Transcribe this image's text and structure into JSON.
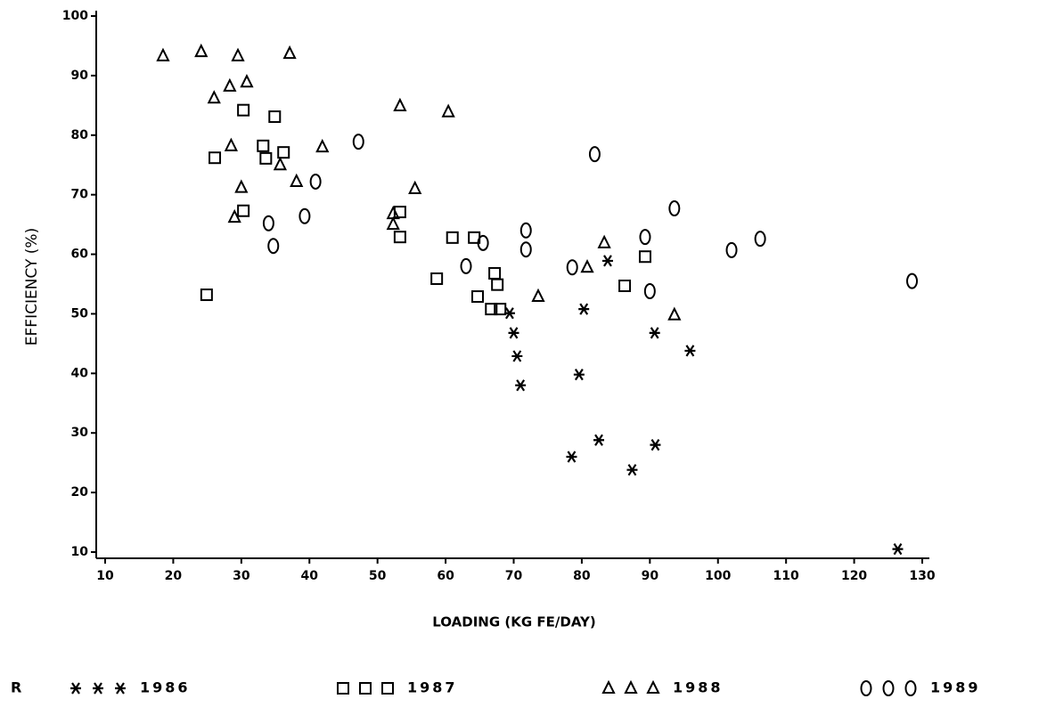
{
  "chart_data": {
    "type": "scatter",
    "x_label": "LOADING (KG FE/DAY)",
    "y_label": "EFFICIENCY (%)",
    "legend_title": "R",
    "xlim": [
      10,
      130
    ],
    "ylim": [
      10,
      100
    ],
    "xticks": [
      10,
      20,
      30,
      40,
      50,
      60,
      70,
      80,
      90,
      100,
      110,
      120,
      130
    ],
    "yticks": [
      10,
      20,
      30,
      40,
      50,
      60,
      70,
      80,
      90,
      100
    ],
    "grid": false,
    "legend_position": "bottom",
    "series": [
      {
        "name": "1986",
        "color": "#000000",
        "marker": "asterisk",
        "x": [
          69.4,
          70,
          70.5,
          71,
          80.3,
          83.8,
          79.6,
          78.5,
          82.5,
          87.4,
          90.8,
          90.7,
          95.9,
          126.4
        ],
        "y": [
          50.1,
          46.8,
          42.9,
          38,
          50.8,
          58.9,
          39.8,
          26,
          28.8,
          23.8,
          28,
          46.8,
          43.8,
          10.5
        ]
      },
      {
        "name": "1987",
        "color": "#000000",
        "marker": "square",
        "x": [
          24.9,
          26.1,
          30.3,
          34.9,
          33.2,
          33.6,
          36.2,
          30.3,
          53.3,
          53.3,
          61,
          64.2,
          58.7,
          64.7,
          67.2,
          67.6,
          66.7,
          68,
          89.3,
          86.3
        ],
        "y": [
          53.2,
          76.2,
          84.2,
          83.1,
          78.2,
          76.1,
          77.1,
          67.3,
          67.1,
          62.9,
          62.8,
          62.8,
          55.9,
          52.9,
          56.8,
          54.9,
          50.8,
          50.8,
          59.6,
          54.7
        ]
      },
      {
        "name": "1988",
        "color": "#000000",
        "marker": "triangle",
        "x": [
          18.5,
          24.1,
          29.5,
          37.1,
          26,
          28.3,
          30.8,
          28.5,
          30,
          29,
          35.7,
          38.1,
          41.9,
          53.3,
          60.4,
          55.5,
          52.3,
          52.3,
          73.6,
          80.8,
          83.3,
          93.6
        ],
        "y": [
          93.3,
          94,
          93.3,
          93.7,
          86.2,
          88.2,
          88.9,
          78.2,
          71.2,
          66.2,
          75,
          72.2,
          78,
          84.9,
          83.9,
          71,
          66.8,
          65,
          52.9,
          57.8,
          61.9,
          49.8
        ]
      },
      {
        "name": "1989",
        "color": "#000000",
        "marker": "circle",
        "x": [
          47.2,
          40.9,
          39.3,
          34,
          34.7,
          63,
          65.5,
          71.8,
          71.8,
          78.6,
          81.9,
          89.3,
          90,
          93.6,
          102,
          106.2,
          128.5
        ],
        "y": [
          78.9,
          72.2,
          66.4,
          65.2,
          61.4,
          58,
          61.9,
          64,
          60.8,
          57.8,
          76.8,
          62.9,
          53.8,
          67.7,
          60.7,
          62.6,
          55.5
        ]
      }
    ]
  }
}
